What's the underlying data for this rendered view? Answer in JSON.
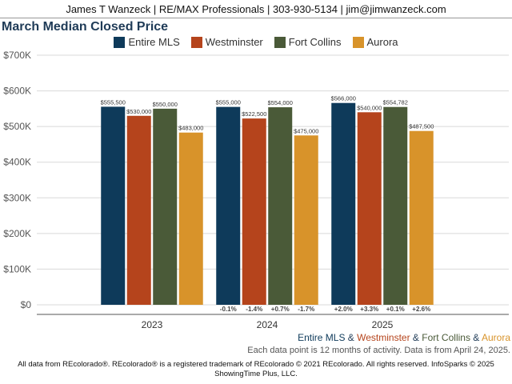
{
  "header": {
    "text": "James T Wanzeck | RE/MAX Professionals | 303-930-5134 | jim@jimwanzeck.com"
  },
  "colors": {
    "entire_mls": "#0e3a5a",
    "westminster": "#b5441c",
    "fort_collins": "#4a5a38",
    "aurora": "#d8932a"
  },
  "chart_data": {
    "type": "bar",
    "title": "March Median Closed Price",
    "categories": [
      "2023",
      "2024",
      "2025"
    ],
    "series": [
      {
        "name": "Entire MLS",
        "values": [
          555500,
          555000,
          566000
        ],
        "labels": [
          "$555,500",
          "$555,000",
          "$566,000"
        ],
        "changes": [
          "",
          "-0.1%",
          "+2.0%"
        ]
      },
      {
        "name": "Westminster",
        "values": [
          530000,
          522500,
          540000
        ],
        "labels": [
          "$530,000",
          "$522,500",
          "$540,000"
        ],
        "changes": [
          "",
          "-1.4%",
          "+3.3%"
        ]
      },
      {
        "name": "Fort Collins",
        "values": [
          550000,
          554000,
          554782
        ],
        "labels": [
          "$550,000",
          "$554,000",
          "$554,782"
        ],
        "changes": [
          "",
          "+0.7%",
          "+0.1%"
        ]
      },
      {
        "name": "Aurora",
        "values": [
          483000,
          475000,
          487500
        ],
        "labels": [
          "$483,000",
          "$475,000",
          "$487,500"
        ],
        "changes": [
          "",
          "-1.7%",
          "+2.6%"
        ]
      }
    ],
    "ylim": [
      0,
      700000
    ],
    "yticks": [
      "$0",
      "$100K",
      "$200K",
      "$300K",
      "$400K",
      "$500K",
      "$600K",
      "$700K"
    ],
    "grid": true,
    "legend": "top-center"
  },
  "caption": {
    "parts": [
      "Entire MLS",
      " & ",
      "Westminster",
      " & ",
      "Fort Collins",
      " & ",
      "Aurora"
    ]
  },
  "footnotes": {
    "activity": "Each data point is 12 months of activity. Data is from April 24, 2025.",
    "copyright_line1": "All data from REcolorado®. REcolorado® is a registered trademark of REcolorado © 2021 REcolorado. All rights reserved. InfoSparks © 2025",
    "copyright_line2": "ShowingTime Plus, LLC."
  }
}
